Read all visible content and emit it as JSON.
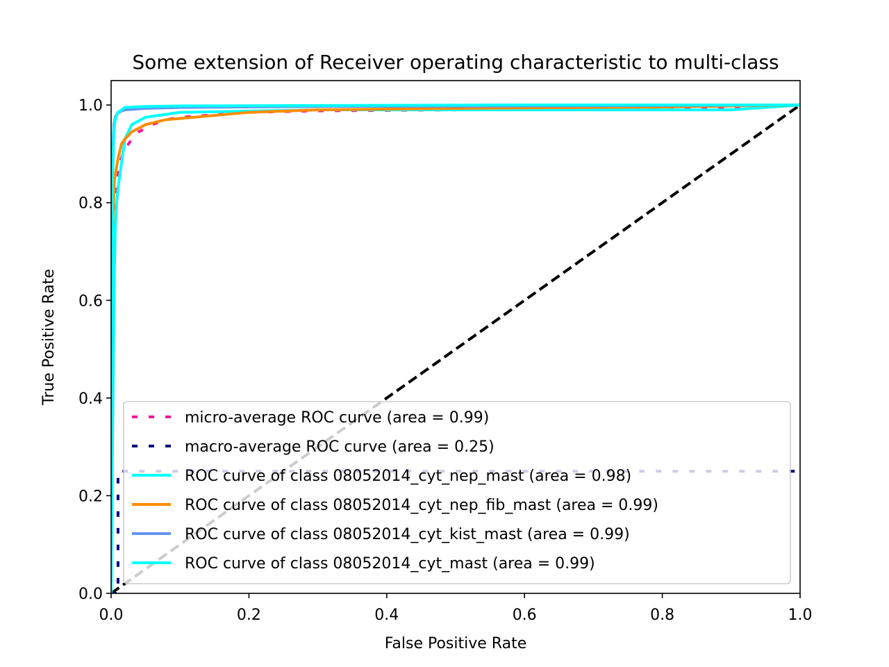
{
  "chart_data": {
    "type": "line",
    "title": "Some extension of Receiver operating characteristic to multi-class",
    "xlabel": "False Positive Rate",
    "ylabel": "True Positive Rate",
    "xlim": [
      0.0,
      1.0
    ],
    "ylim": [
      0.0,
      1.05
    ],
    "xticks": [
      "0.0",
      "0.2",
      "0.4",
      "0.6",
      "0.8",
      "1.0"
    ],
    "xtick_values": [
      0.0,
      0.2,
      0.4,
      0.6,
      0.8,
      1.0
    ],
    "yticks": [
      "0.0",
      "0.2",
      "0.4",
      "0.6",
      "0.8",
      "1.0"
    ],
    "ytick_values": [
      0.0,
      0.2,
      0.4,
      0.6,
      0.8,
      1.0
    ],
    "grid": false,
    "legend_placement": "lower-right",
    "series": [
      {
        "name": "micro-average ROC curve (area = 0.99)",
        "color": "#ff1493",
        "style": "dotted",
        "x": [
          0.0,
          0.002,
          0.004,
          0.008,
          0.012,
          0.02,
          0.03,
          0.04,
          0.06,
          0.08,
          0.1,
          0.15,
          0.2,
          0.3,
          0.5,
          0.7,
          0.9,
          0.95,
          1.0
        ],
        "y": [
          0.0,
          0.6,
          0.75,
          0.83,
          0.88,
          0.91,
          0.93,
          0.945,
          0.96,
          0.97,
          0.975,
          0.98,
          0.985,
          0.988,
          0.99,
          0.992,
          0.995,
          1.0,
          1.0
        ]
      },
      {
        "name": "macro-average ROC curve (area = 0.25)",
        "color": "#000080",
        "style": "dotted",
        "x": [
          0.0,
          0.01,
          0.01,
          1.0
        ],
        "y": [
          0.0,
          0.0,
          0.25,
          0.25
        ]
      },
      {
        "name": "ROC curve of class 08052014_cyt_nep_mast (area = 0.98)",
        "color": "#00ffff",
        "style": "solid",
        "x": [
          0.0,
          0.002,
          0.004,
          0.006,
          0.008,
          0.01,
          0.015,
          0.02,
          0.03,
          0.05,
          0.1,
          0.3,
          0.6,
          0.9,
          0.95,
          1.0
        ],
        "y": [
          0.0,
          0.3,
          0.6,
          0.75,
          0.8,
          0.83,
          0.88,
          0.93,
          0.96,
          0.975,
          0.985,
          0.99,
          0.99,
          0.99,
          0.995,
          1.0
        ]
      },
      {
        "name": "ROC curve of class 08052014_cyt_nep_fib_mast (area = 0.99)",
        "color": "#ff8c00",
        "style": "solid",
        "x": [
          0.0,
          0.002,
          0.005,
          0.01,
          0.015,
          0.02,
          0.03,
          0.05,
          0.08,
          0.12,
          0.2,
          0.3,
          0.5,
          0.8,
          1.0
        ],
        "y": [
          0.0,
          0.75,
          0.85,
          0.89,
          0.92,
          0.93,
          0.945,
          0.96,
          0.97,
          0.975,
          0.985,
          0.99,
          0.993,
          0.996,
          1.0
        ]
      },
      {
        "name": "ROC curve of class 08052014_cyt_kist_mast (area = 0.99)",
        "color": "#6495ed",
        "style": "solid",
        "x": [
          0.0,
          0.002,
          0.004,
          0.006,
          0.01,
          0.02,
          0.05,
          0.1,
          0.3,
          0.6,
          1.0
        ],
        "y": [
          0.0,
          0.9,
          0.96,
          0.975,
          0.985,
          0.99,
          0.993,
          0.995,
          0.997,
          0.998,
          1.0
        ]
      },
      {
        "name": "ROC curve of class 08052014_cyt_mast (area = 0.99)",
        "color": "#00ffff",
        "style": "solid",
        "x": [
          0.0,
          0.001,
          0.002,
          0.004,
          0.006,
          0.01,
          0.015,
          0.02,
          0.05,
          0.1,
          0.3,
          0.6,
          1.0
        ],
        "y": [
          0.0,
          0.5,
          0.85,
          0.95,
          0.97,
          0.985,
          0.99,
          0.995,
          0.997,
          0.998,
          0.999,
          1.0,
          1.0
        ]
      }
    ],
    "reference_lines": [
      {
        "color": "#000000",
        "style": "dashed",
        "x": [
          0.0,
          1.0
        ],
        "y": [
          0.0,
          1.0
        ]
      },
      {
        "color": "#c8c8c8",
        "style": "dashed",
        "x": [
          0.0,
          1.0
        ],
        "y": [
          0.0,
          1.0
        ]
      }
    ]
  }
}
